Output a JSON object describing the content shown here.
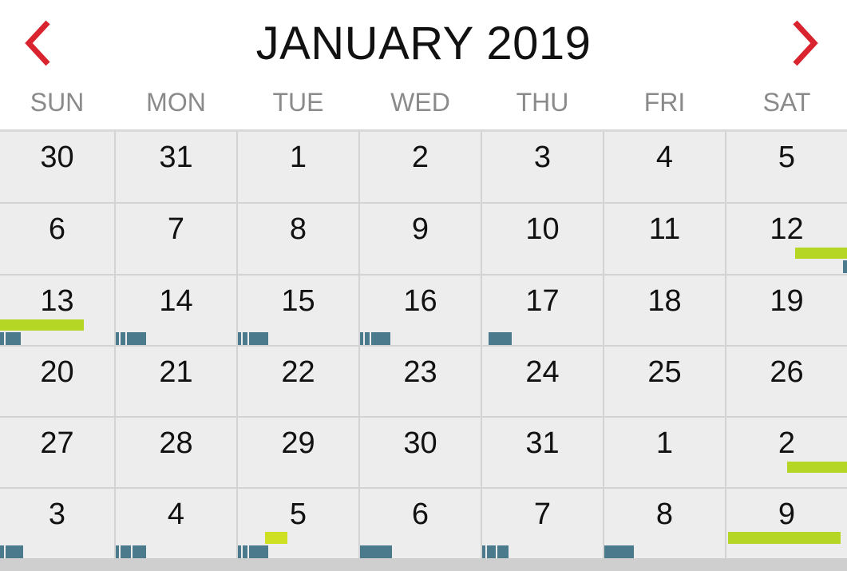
{
  "header": {
    "title": "JANUARY 2019",
    "prev_icon": "chevron-left-icon",
    "next_icon": "chevron-right-icon",
    "accent_color": "#d9232e"
  },
  "weekdays": [
    "SUN",
    "MON",
    "TUE",
    "WED",
    "THU",
    "FRI",
    "SAT"
  ],
  "weeks": [
    [
      "30",
      "31",
      "1",
      "2",
      "3",
      "4",
      "5"
    ],
    [
      "6",
      "7",
      "8",
      "9",
      "10",
      "11",
      "12"
    ],
    [
      "13",
      "14",
      "15",
      "16",
      "17",
      "18",
      "19"
    ],
    [
      "20",
      "21",
      "22",
      "23",
      "24",
      "25",
      "26"
    ],
    [
      "27",
      "28",
      "29",
      "30",
      "31",
      "1",
      "2"
    ],
    [
      "3",
      "4",
      "5",
      "6",
      "7",
      "8",
      "9"
    ]
  ],
  "colors": {
    "event_green": "#b5d624",
    "event_teal": "#4a7a8c",
    "event_yellow": "#cfe023"
  }
}
